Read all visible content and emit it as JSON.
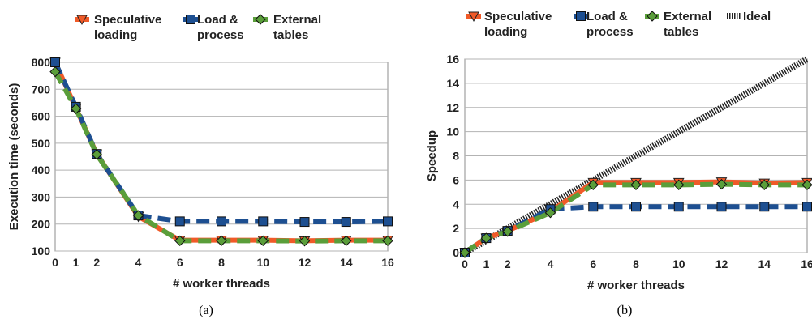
{
  "colors": {
    "speculative": "#f05a28",
    "load": "#1d4f91",
    "external": "#5a9e3a",
    "ideal": "#222222",
    "grid": "#b3b3b3",
    "frame": "#8c8c8c"
  },
  "chart_data": [
    {
      "type": "line",
      "sublabel": "(a)",
      "xlabel": "# worker threads",
      "ylabel": "Execution time (seconds)",
      "x": [
        0,
        1,
        2,
        4,
        6,
        8,
        10,
        12,
        14,
        16
      ],
      "xlim": [
        0,
        16
      ],
      "ylim": [
        100,
        800
      ],
      "yticks": [
        100,
        200,
        300,
        400,
        500,
        600,
        700,
        800
      ],
      "grid": true,
      "legend_position": "top",
      "series": [
        {
          "name": "Speculative loading",
          "key": "speculative",
          "marker": "triangle-down",
          "dash": "solid",
          "values": [
            800,
            630,
            460,
            228,
            140,
            140,
            140,
            138,
            140,
            140
          ]
        },
        {
          "name": "Load & process",
          "key": "load",
          "marker": "square",
          "dash": "dashed",
          "values": [
            800,
            635,
            460,
            232,
            210,
            210,
            210,
            208,
            208,
            210
          ]
        },
        {
          "name": "External tables",
          "key": "external",
          "marker": "diamond",
          "dash": "dashed",
          "values": [
            765,
            628,
            458,
            232,
            138,
            138,
            138,
            137,
            138,
            138
          ]
        }
      ],
      "legend": [
        {
          "line1": "Speculative",
          "line2": "loading",
          "key": "speculative",
          "marker": "triangle-down"
        },
        {
          "line1": "Load &",
          "line2": "process",
          "key": "load",
          "marker": "square"
        },
        {
          "line1": "External",
          "line2": "tables",
          "key": "external",
          "marker": "diamond"
        }
      ]
    },
    {
      "type": "line",
      "sublabel": "(b)",
      "xlabel": "# worker threads",
      "ylabel": "Speedup",
      "x": [
        0,
        1,
        2,
        4,
        6,
        8,
        10,
        12,
        14,
        16
      ],
      "xlim": [
        0,
        16
      ],
      "ylim": [
        0,
        16
      ],
      "yticks": [
        0,
        2,
        4,
        6,
        8,
        10,
        12,
        14,
        16
      ],
      "grid": true,
      "legend_position": "top",
      "series": [
        {
          "name": "Speculative loading",
          "key": "speculative",
          "marker": "triangle-down",
          "dash": "solid",
          "values": [
            0,
            1.2,
            1.8,
            3.4,
            5.8,
            5.8,
            5.8,
            5.85,
            5.75,
            5.8
          ]
        },
        {
          "name": "Load & process",
          "key": "load",
          "marker": "square",
          "dash": "dashed",
          "values": [
            0,
            1.2,
            1.8,
            3.6,
            3.8,
            3.8,
            3.8,
            3.8,
            3.8,
            3.8
          ]
        },
        {
          "name": "External tables",
          "key": "external",
          "marker": "diamond",
          "dash": "dashed",
          "values": [
            0,
            1.2,
            1.75,
            3.3,
            5.6,
            5.6,
            5.6,
            5.65,
            5.6,
            5.6
          ]
        },
        {
          "name": "Ideal",
          "key": "ideal",
          "marker": "none",
          "dash": "dotted",
          "values": [
            0,
            1,
            2,
            4,
            6,
            8,
            10,
            12,
            14,
            16
          ]
        }
      ],
      "legend": [
        {
          "line1": "Speculative",
          "line2": "loading",
          "key": "speculative",
          "marker": "triangle-down"
        },
        {
          "line1": "Load &",
          "line2": "process",
          "key": "load",
          "marker": "square"
        },
        {
          "line1": "External",
          "line2": "tables",
          "key": "external",
          "marker": "diamond"
        },
        {
          "line1": "Ideal",
          "line2": "",
          "key": "ideal",
          "marker": "none"
        }
      ]
    }
  ]
}
